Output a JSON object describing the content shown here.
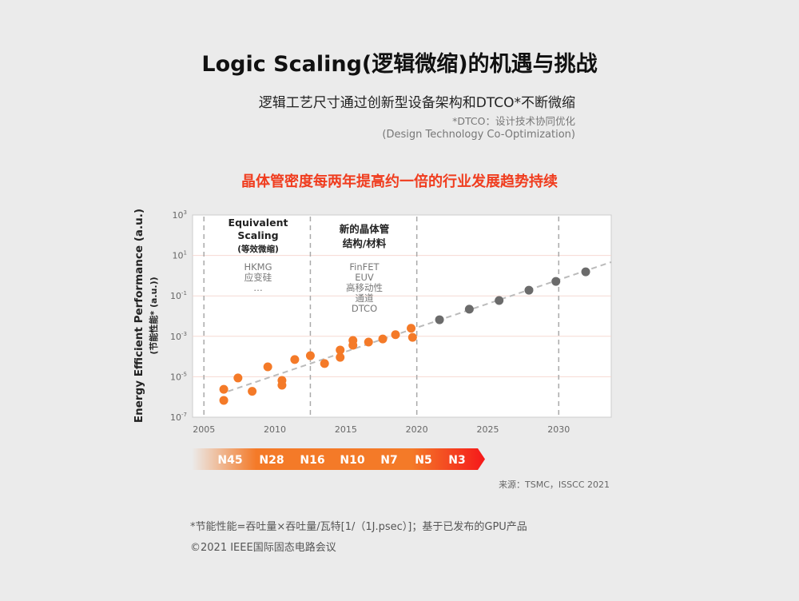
{
  "header": {
    "title": "Logic Scaling(逻辑微缩)的机遇与挑战",
    "subtitle": "逻辑工艺尺寸通过创新型设备架构和DTCO*不断微缩",
    "note_line1": "*DTCO：设计技术协同优化",
    "note_line2": "(Design Technology Co-Optimization)",
    "headline": "晶体管密度每两年提高约一倍的行业发展趋势持续"
  },
  "chart_data": {
    "type": "scatter",
    "ylabel": "Energy Efficient Performance (a.u.)",
    "ylabel2": "(节能性能* (a.u.))",
    "xlabel": "",
    "x_scale": "linear",
    "y_scale": "log",
    "xlim": [
      2004.2,
      2033.7
    ],
    "ylim": [
      1e-07,
      1000
    ],
    "x_ticks": [
      "2005",
      "2010",
      "2015",
      "2020",
      "2025",
      "2030"
    ],
    "y_ticks": [
      {
        "base": "10",
        "exp": "3",
        "value": 1000
      },
      {
        "base": "10",
        "exp": "1",
        "value": 10
      },
      {
        "base": "10",
        "exp": "-1",
        "value": 0.1
      },
      {
        "base": "10",
        "exp": "-3",
        "value": 0.001
      },
      {
        "base": "10",
        "exp": "-5",
        "value": 1e-05
      },
      {
        "base": "10",
        "exp": "-7",
        "value": 1e-07
      }
    ],
    "grid": "horizontal",
    "era_dividers": [
      2005,
      2012.5,
      2020,
      2030
    ],
    "trendline": {
      "x": [
        2006.7,
        2033.7
      ],
      "y": [
        1.9e-06,
        4.7
      ]
    },
    "series": [
      {
        "color": "#f47a28",
        "points": [
          [
            2006.4,
            6.8e-07
          ],
          [
            2006.4,
            2.4e-06
          ],
          [
            2007.4,
            8.7e-06
          ],
          [
            2008.4,
            1.9e-06
          ],
          [
            2009.5,
            3.1e-05
          ],
          [
            2010.5,
            6.6e-06
          ],
          [
            2010.5,
            3.8e-06
          ],
          [
            2011.4,
            7.1e-05
          ],
          [
            2012.5,
            0.00011
          ],
          [
            2013.5,
            4.5e-05
          ],
          [
            2014.6,
            0.00021
          ],
          [
            2014.6,
            9.1e-05
          ],
          [
            2015.5,
            0.00062
          ],
          [
            2015.5,
            0.00036
          ],
          [
            2016.6,
            0.00052
          ],
          [
            2017.6,
            0.00074
          ],
          [
            2018.5,
            0.0012
          ],
          [
            2019.6,
            0.0025
          ],
          [
            2019.7,
            0.00089
          ]
        ]
      },
      {
        "color": "#6b6b6b",
        "points": [
          [
            2021.6,
            0.0066
          ],
          [
            2023.7,
            0.022
          ],
          [
            2025.8,
            0.059
          ],
          [
            2027.9,
            0.19
          ],
          [
            2029.8,
            0.52
          ],
          [
            2031.9,
            1.55
          ]
        ]
      }
    ],
    "annotations": [
      {
        "lines": [
          "Equivalent",
          "Scaling",
          "(等效微缩)"
        ],
        "items": [
          "HKMG",
          "应变硅",
          "…"
        ]
      },
      {
        "lines": [
          "新的晶体管",
          "结构/材料"
        ],
        "items": [
          "FinFET",
          "EUV",
          "高移动性",
          "通道",
          "DTCO"
        ]
      }
    ],
    "nodes": [
      "N45",
      "N28",
      "N16",
      "N10",
      "N7",
      "N5",
      "N3"
    ],
    "node_bar_colors": [
      "#ebebeb",
      "#f47a28",
      "#f5181a"
    ]
  },
  "source": "来源：TSMC，ISSCC 2021",
  "footnote1": "*节能性能=吞吐量×吞吐量/瓦特[1/（1J.psec）]；基于已发布的GPU产品",
  "footnote2": "©2021 IEEE国际固态电路会议"
}
